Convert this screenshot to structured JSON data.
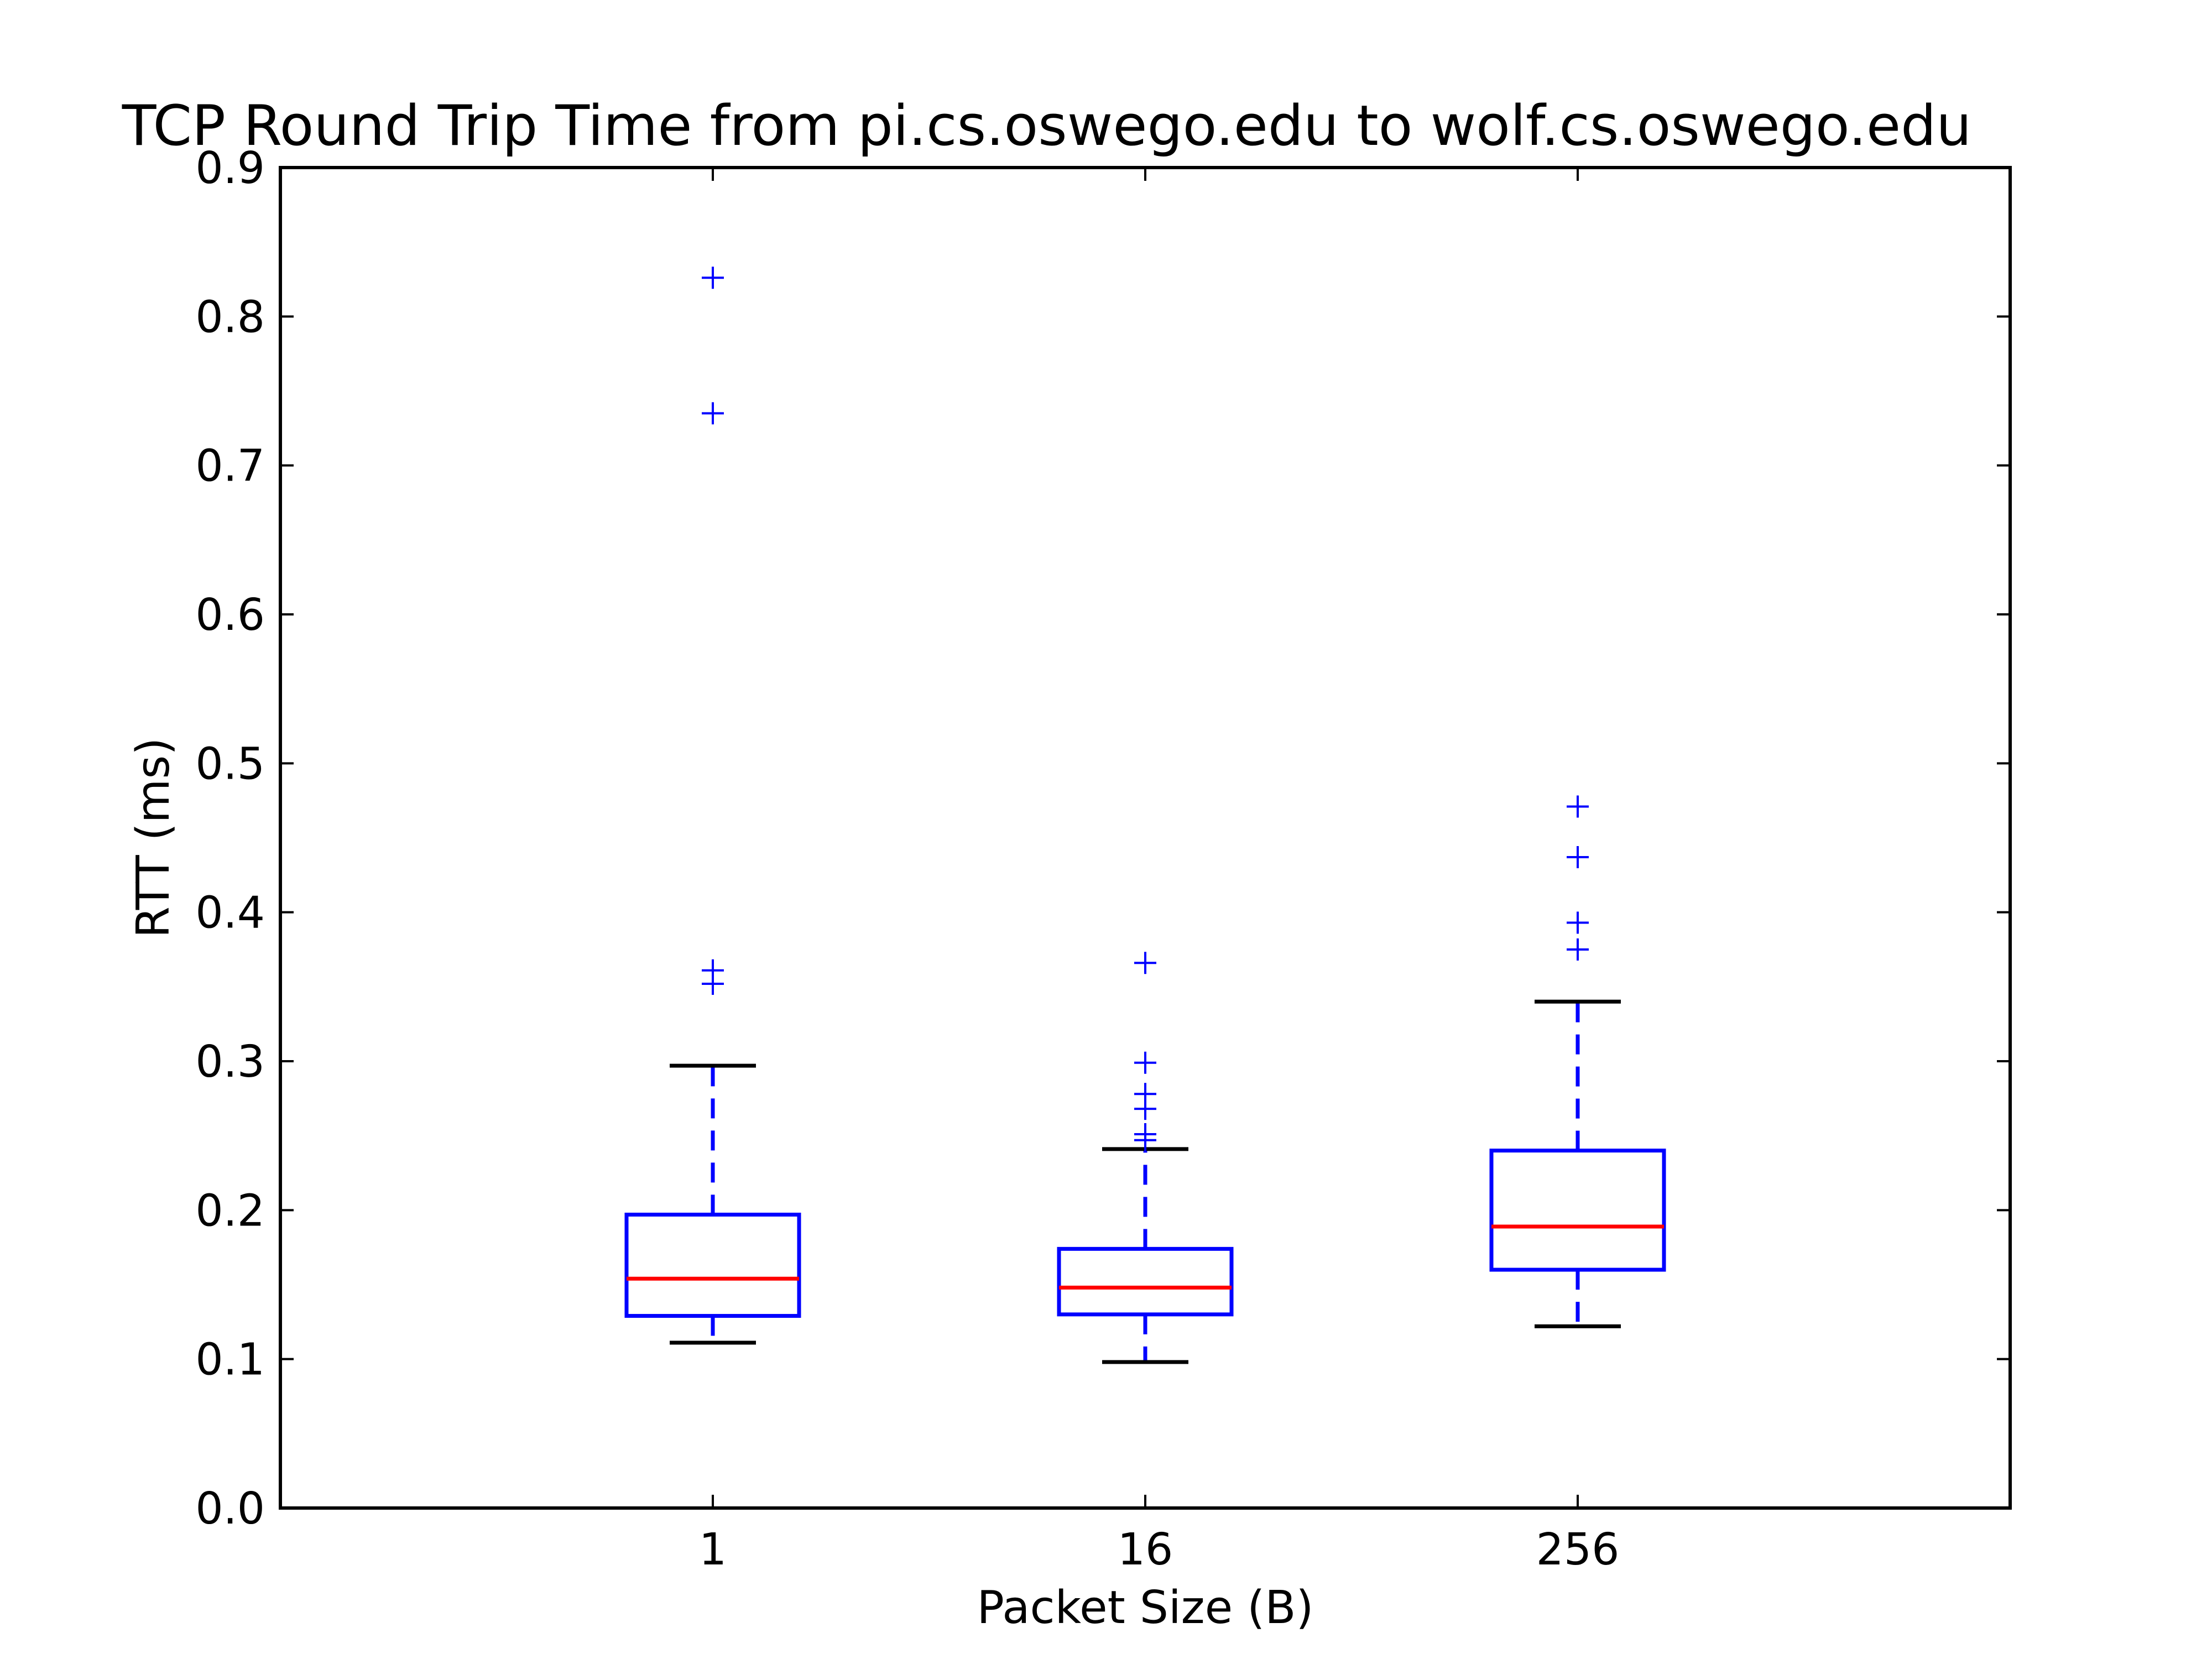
{
  "chart_data": {
    "type": "box",
    "title": "TCP Round Trip Time from pi.cs.oswego.edu to wolf.cs.oswego.edu",
    "xlabel": "Packet Size (B)",
    "ylabel": "RTT (ms)",
    "categories": [
      "1",
      "16",
      "256"
    ],
    "ylim": [
      0.0,
      0.9
    ],
    "yticks": [
      "0.0",
      "0.1",
      "0.2",
      "0.3",
      "0.4",
      "0.5",
      "0.6",
      "0.7",
      "0.8",
      "0.9"
    ],
    "grid": false,
    "legend": "none",
    "boxes": [
      {
        "category": "1",
        "whisker_low": 0.111,
        "q1": 0.129,
        "median": 0.154,
        "q3": 0.197,
        "whisker_high": 0.297,
        "outliers": [
          0.352,
          0.361,
          0.735,
          0.826
        ]
      },
      {
        "category": "16",
        "whisker_low": 0.098,
        "q1": 0.13,
        "median": 0.148,
        "q3": 0.174,
        "whisker_high": 0.241,
        "outliers": [
          0.247,
          0.251,
          0.268,
          0.278,
          0.299,
          0.366
        ]
      },
      {
        "category": "256",
        "whisker_low": 0.122,
        "q1": 0.16,
        "median": 0.189,
        "q3": 0.24,
        "whisker_high": 0.34,
        "outliers": [
          0.375,
          0.393,
          0.437,
          0.471
        ]
      }
    ],
    "colors": {
      "box": "#0000ff",
      "median": "#ff0000",
      "whisker": "#0000ff",
      "cap": "#000000",
      "outlier": "#0000ff",
      "axes": "#000000"
    }
  }
}
